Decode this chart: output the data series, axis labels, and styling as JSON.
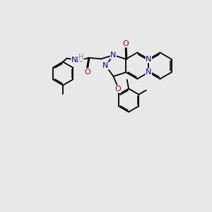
{
  "background_color": "#e8e8e8",
  "bond_color": "#000000",
  "N_color": "#0000cc",
  "O_color": "#cc0000",
  "H_color": "#5f9ea0",
  "font_size": 7.5,
  "line_width": 1.3,
  "figsize": [
    3.0,
    3.0
  ],
  "dpi": 100,
  "xlim": [
    0,
    10
  ],
  "ylim": [
    0,
    10
  ]
}
